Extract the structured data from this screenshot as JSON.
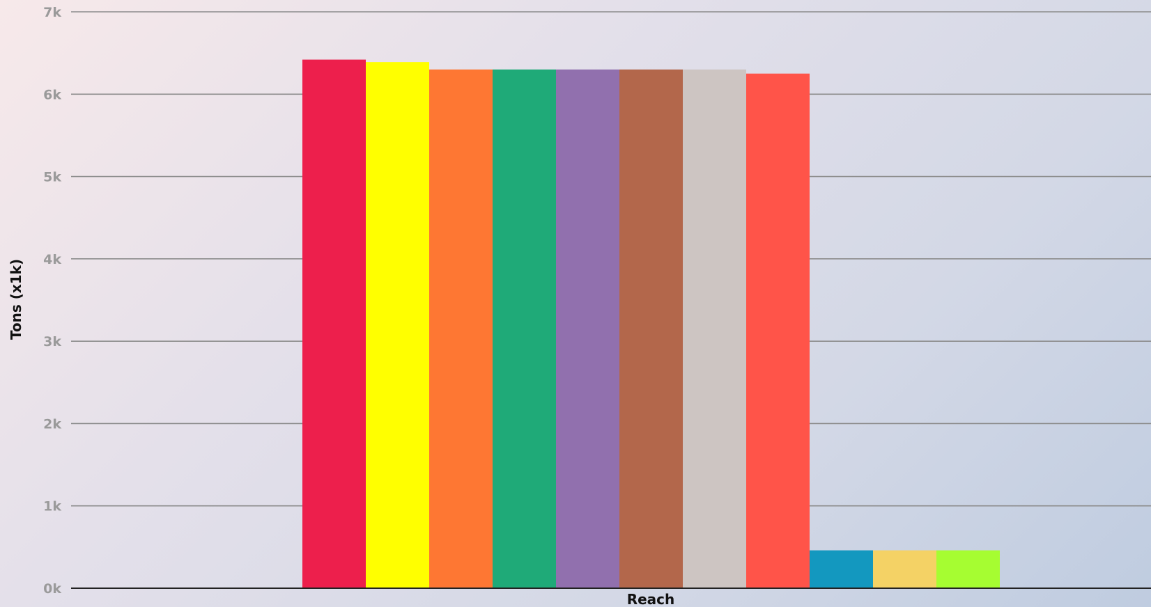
{
  "chart_data": {
    "type": "bar",
    "xlabel": "Reach",
    "ylabel": "Tons (x1k)",
    "ylim": [
      0,
      7000
    ],
    "yticks": [
      {
        "value": 0,
        "label": "0k"
      },
      {
        "value": 1000,
        "label": "1k"
      },
      {
        "value": 2000,
        "label": "2k"
      },
      {
        "value": 3000,
        "label": "3k"
      },
      {
        "value": 4000,
        "label": "4k"
      },
      {
        "value": 5000,
        "label": "5k"
      },
      {
        "value": 6000,
        "label": "6k"
      },
      {
        "value": 7000,
        "label": "7k"
      }
    ],
    "grid": true,
    "categories": [
      "Reach"
    ],
    "series": [
      {
        "values": [
          6420
        ],
        "color": "#ed1f4c"
      },
      {
        "values": [
          6390
        ],
        "color": "#ffff00"
      },
      {
        "values": [
          6300
        ],
        "color": "#fe7733"
      },
      {
        "values": [
          6300
        ],
        "color": "#1faa78"
      },
      {
        "values": [
          6300
        ],
        "color": "#9170ae"
      },
      {
        "values": [
          6300
        ],
        "color": "#b3674b"
      },
      {
        "values": [
          6300
        ],
        "color": "#cdc5c2"
      },
      {
        "values": [
          6250
        ],
        "color": "#ff5449"
      },
      {
        "values": [
          460
        ],
        "color": "#1398bf"
      },
      {
        "values": [
          460
        ],
        "color": "#f4d265"
      },
      {
        "values": [
          460
        ],
        "color": "#a6fd31"
      }
    ]
  }
}
